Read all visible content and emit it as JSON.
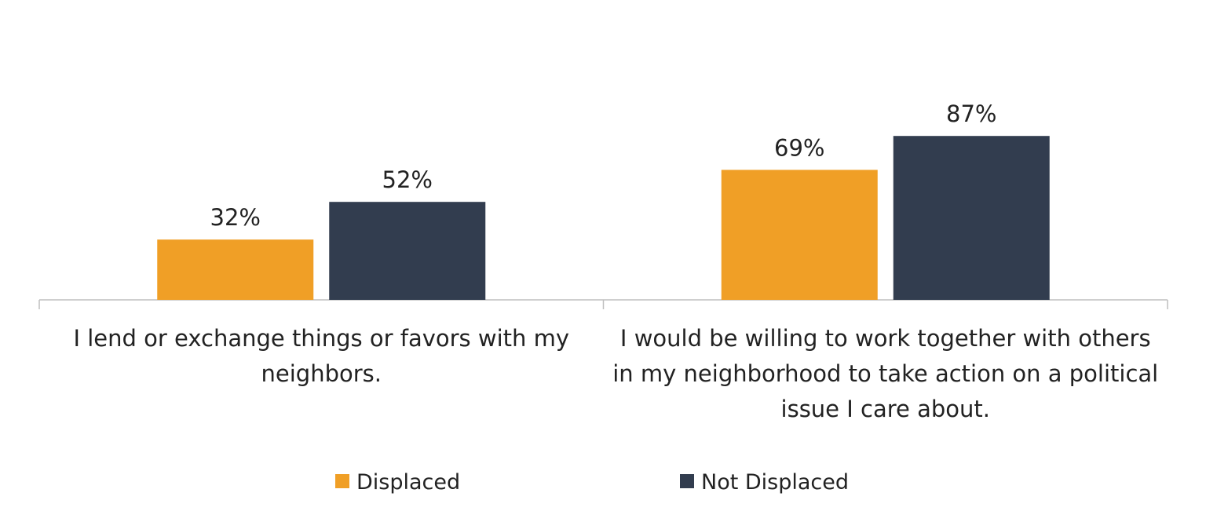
{
  "chart_data": {
    "type": "bar",
    "categories": [
      [
        "I lend or exchange things or favors with my",
        "neighbors."
      ],
      [
        "I would be willing to work together with others",
        "in my neighborhood to take action on a political",
        "issue I care about."
      ]
    ],
    "series": [
      {
        "name": "Displaced",
        "color": "#F09F26",
        "values": [
          32,
          69
        ],
        "labels": [
          "32%",
          "69%"
        ]
      },
      {
        "name": "Not Displaced",
        "color": "#323D4F",
        "values": [
          52,
          87
        ],
        "labels": [
          "52%",
          "87%"
        ]
      }
    ],
    "ylim": [
      0,
      100
    ],
    "grid": false,
    "legend": "bottom",
    "axis_color": "#BFBFBF"
  }
}
